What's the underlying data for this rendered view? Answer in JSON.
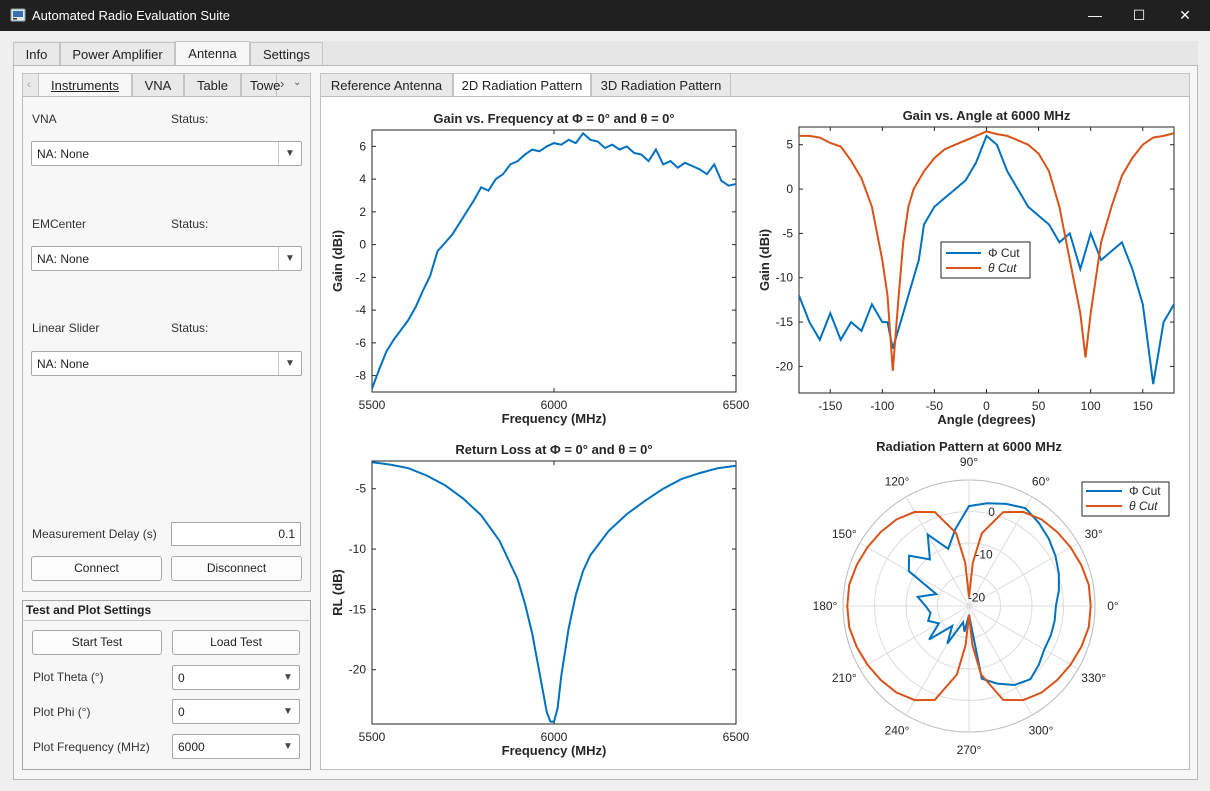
{
  "window": {
    "title": "Automated Radio Evaluation Suite",
    "minimize": "—",
    "maximize": "☐",
    "close": "✕"
  },
  "main_tabs": [
    "Info",
    "Power Amplifier",
    "Antenna",
    "Settings"
  ],
  "left_tabs": [
    "Instruments",
    "VNA",
    "Table",
    "Towe"
  ],
  "instruments": {
    "vna_label": "VNA",
    "emcenter_label": "EMCenter",
    "slider_label": "Linear Slider",
    "status_label": "Status:",
    "vna_value": "NA: None",
    "emcenter_value": "NA: None",
    "slider_value": "NA: None",
    "delay_label": "Measurement Delay (s)",
    "delay_value": "0.1",
    "connect": "Connect",
    "disconnect": "Disconnect"
  },
  "test_settings": {
    "title": "Test and Plot Settings",
    "start": "Start Test",
    "load": "Load Test",
    "theta_label": "Plot Theta (°)",
    "theta_value": "0",
    "phi_label": "Plot Phi (°)",
    "phi_value": "0",
    "freq_label": "Plot Frequency (MHz)",
    "freq_value": "6000"
  },
  "plot_tabs": [
    "Reference Antenna",
    "2D Radiation Pattern",
    "3D Radiation Pattern"
  ],
  "colors": {
    "blue": "#0072BD",
    "orange": "#D95319"
  },
  "chart_data": [
    {
      "type": "line",
      "title": "Gain vs. Frequency at Φ = 0° and θ = 0°",
      "xlabel": "Frequency (MHz)",
      "ylabel": "Gain (dBi)",
      "xlim": [
        5500,
        6500
      ],
      "ylim": [
        -9,
        7
      ],
      "xticks": [
        5500,
        6000,
        6500
      ],
      "yticks": [
        -8,
        -6,
        -4,
        -2,
        0,
        2,
        4,
        6
      ],
      "series": [
        {
          "color": "blue",
          "x": [
            5500,
            5520,
            5540,
            5560,
            5580,
            5600,
            5620,
            5640,
            5660,
            5680,
            5700,
            5720,
            5740,
            5760,
            5780,
            5800,
            5820,
            5840,
            5860,
            5880,
            5900,
            5920,
            5940,
            5960,
            5980,
            6000,
            6020,
            6040,
            6060,
            6080,
            6100,
            6120,
            6140,
            6160,
            6180,
            6200,
            6220,
            6240,
            6260,
            6280,
            6300,
            6320,
            6340,
            6360,
            6380,
            6400,
            6420,
            6440,
            6460,
            6480,
            6500
          ],
          "y": [
            -8.8,
            -7.6,
            -6.5,
            -5.8,
            -5.2,
            -4.6,
            -3.8,
            -2.8,
            -1.9,
            -0.4,
            0.1,
            0.6,
            1.3,
            2.0,
            2.7,
            3.5,
            3.3,
            4.0,
            4.3,
            4.9,
            5.1,
            5.5,
            5.8,
            5.7,
            6.0,
            6.2,
            6.1,
            6.4,
            6.2,
            6.8,
            6.4,
            6.3,
            5.9,
            6.1,
            5.8,
            6.0,
            5.6,
            5.5,
            5.1,
            5.8,
            4.9,
            5.1,
            4.7,
            5.0,
            4.8,
            4.6,
            4.3,
            4.9,
            3.9,
            3.6,
            3.7
          ]
        }
      ]
    },
    {
      "type": "line",
      "title": "Gain vs. Angle at 6000 MHz",
      "xlabel": "Angle (degrees)",
      "ylabel": "Gain (dBi)",
      "xlim": [
        -180,
        180
      ],
      "ylim": [
        -23,
        7
      ],
      "xticks": [
        -150,
        -100,
        -50,
        0,
        50,
        100,
        150
      ],
      "yticks": [
        -20,
        -15,
        -10,
        -5,
        0,
        5
      ],
      "legend": {
        "entries": [
          "Φ  Cut",
          "θ  Cut"
        ],
        "placement": "center"
      },
      "series": [
        {
          "name": "Φ  Cut",
          "color": "blue",
          "x": [
            -180,
            -170,
            -160,
            -150,
            -140,
            -130,
            -120,
            -110,
            -100,
            -95,
            -90,
            -85,
            -80,
            -75,
            -70,
            -65,
            -60,
            -50,
            -40,
            -30,
            -20,
            -10,
            0,
            10,
            20,
            30,
            40,
            50,
            60,
            70,
            80,
            90,
            100,
            110,
            120,
            130,
            140,
            150,
            160,
            170,
            180
          ],
          "y": [
            -12,
            -15,
            -17,
            -14,
            -17,
            -15,
            -16,
            -13,
            -15,
            -15,
            -18,
            -16,
            -14,
            -12,
            -10,
            -8,
            -4,
            -2,
            -1,
            0,
            1,
            3,
            6,
            5,
            2,
            0,
            -2,
            -3,
            -4,
            -6,
            -5,
            -9,
            -5,
            -8,
            -7,
            -6,
            -9,
            -13,
            -22,
            -15,
            -13
          ]
        },
        {
          "name": "θ  Cut",
          "color": "orange",
          "x": [
            -180,
            -170,
            -160,
            -150,
            -140,
            -130,
            -120,
            -110,
            -100,
            -95,
            -90,
            -85,
            -80,
            -75,
            -70,
            -60,
            -50,
            -40,
            -30,
            -20,
            -10,
            0,
            10,
            20,
            30,
            40,
            50,
            60,
            70,
            80,
            90,
            95,
            100,
            110,
            120,
            130,
            140,
            150,
            160,
            170,
            180
          ],
          "y": [
            6,
            6,
            5.8,
            5.2,
            4.8,
            3.2,
            1.2,
            -2,
            -8,
            -12,
            -20.5,
            -13,
            -6,
            -2,
            0,
            2,
            3.5,
            4.5,
            5,
            5.5,
            6,
            6.5,
            6.2,
            6,
            5.5,
            5,
            4,
            2,
            -2,
            -8,
            -14,
            -19,
            -14,
            -6,
            -2,
            1.5,
            3.5,
            5,
            5.8,
            6,
            6.3
          ]
        }
      ]
    },
    {
      "type": "line",
      "title": "Return Loss at Φ = 0° and θ = 0°",
      "xlabel": "Frequency (MHz)",
      "ylabel": "RL (dB)",
      "xlim": [
        5500,
        6500
      ],
      "ylim": [
        -24.5,
        -2.7
      ],
      "xticks": [
        5500,
        6000,
        6500
      ],
      "yticks": [
        -20,
        -15,
        -10,
        -5
      ],
      "series": [
        {
          "color": "blue",
          "x": [
            5500,
            5550,
            5600,
            5650,
            5700,
            5750,
            5800,
            5850,
            5900,
            5920,
            5940,
            5960,
            5980,
            5990,
            6000,
            6010,
            6020,
            6040,
            6060,
            6080,
            6100,
            6150,
            6200,
            6250,
            6300,
            6350,
            6400,
            6450,
            6500
          ],
          "y": [
            -2.8,
            -3.0,
            -3.3,
            -3.9,
            -4.7,
            -5.8,
            -7.2,
            -9.3,
            -12.5,
            -14.5,
            -17.0,
            -20.2,
            -23.5,
            -24.3,
            -24.3,
            -23.2,
            -20.5,
            -16.6,
            -13.8,
            -11.8,
            -10.5,
            -8.5,
            -7.1,
            -6.0,
            -5.0,
            -4.2,
            -3.7,
            -3.3,
            -3.1
          ]
        }
      ]
    },
    {
      "type": "polar",
      "title": "Radiation Pattern at 6000 MHz",
      "angle_ticks": [
        "0°",
        "30°",
        "60°",
        "90°",
        "120°",
        "150°",
        "180°",
        "210°",
        "240°",
        "270°",
        "300°",
        "330°"
      ],
      "r_ticks": [
        "0",
        "-10",
        "-20"
      ],
      "r_range": [
        -22,
        7
      ],
      "legend": {
        "entries": [
          "Φ  Cut",
          "θ  Cut"
        ],
        "placement": "top-right"
      },
      "series": [
        {
          "name": "Φ  Cut",
          "color": "blue",
          "angles": [
            0,
            10,
            20,
            30,
            40,
            50,
            60,
            70,
            80,
            90,
            100,
            110,
            120,
            130,
            140,
            150,
            160,
            170,
            180,
            190,
            200,
            210,
            220,
            230,
            240,
            250,
            260,
            270,
            280,
            290,
            300,
            310,
            320,
            330,
            340,
            350,
            360
          ],
          "r": [
            -2,
            -1,
            0,
            1,
            2,
            3,
            4,
            3,
            2,
            1,
            -4,
            -8,
            -3,
            -8,
            -4,
            -6,
            -14,
            -10,
            -12,
            -13,
            -12,
            -14,
            -10,
            -16,
            -12,
            -18,
            -16,
            -20,
            -5,
            -3,
            -1,
            0,
            -1,
            -2,
            -2,
            -2,
            -2
          ]
        },
        {
          "name": "θ  Cut",
          "color": "orange",
          "angles": [
            0,
            10,
            20,
            30,
            40,
            50,
            60,
            70,
            80,
            85,
            90,
            95,
            100,
            110,
            120,
            130,
            140,
            150,
            160,
            170,
            180,
            190,
            200,
            210,
            220,
            230,
            240,
            250,
            260,
            265,
            270,
            275,
            280,
            290,
            300,
            310,
            320,
            330,
            340,
            350,
            360
          ],
          "r": [
            6,
            6,
            5.5,
            5,
            4.5,
            4,
            3,
            1,
            -5,
            -12,
            -20,
            -12,
            -5,
            1,
            3,
            4,
            4.5,
            5,
            5.5,
            6,
            6,
            6,
            5.5,
            5,
            4.5,
            4,
            3,
            1,
            -6,
            -13,
            -20,
            -13,
            -6,
            1,
            3,
            4,
            4.5,
            5,
            5.5,
            6,
            6
          ]
        }
      ]
    }
  ]
}
